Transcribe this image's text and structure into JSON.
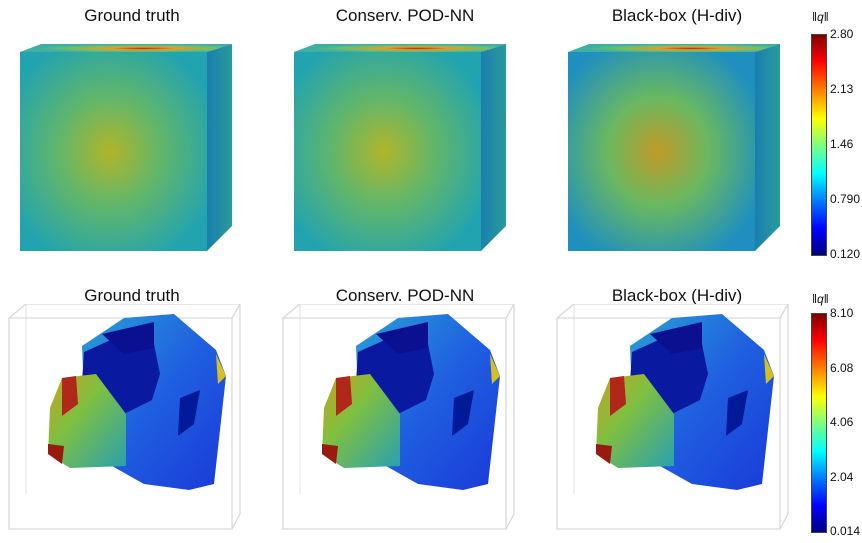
{
  "row1": {
    "titles": [
      "Ground truth",
      "Conserv. POD-NN",
      "Black-box (H-div)"
    ],
    "colorbar": {
      "label": "‖q‖",
      "ticks": [
        "2.80",
        "2.13",
        "1.46",
        "0.790",
        "0.120"
      ]
    }
  },
  "row2": {
    "titles": [
      "Ground truth",
      "Conserv. POD-NN",
      "Black-box (H-div)"
    ],
    "colorbar": {
      "label": "‖q‖",
      "ticks": [
        "8.10",
        "6.08",
        "4.06",
        "2.04",
        "0.014"
      ]
    }
  },
  "colormap": [
    "#00007f",
    "#0000ff",
    "#007fff",
    "#00ffff",
    "#7fff7f",
    "#ffff00",
    "#ff7f00",
    "#ff0000",
    "#7f0000"
  ]
}
